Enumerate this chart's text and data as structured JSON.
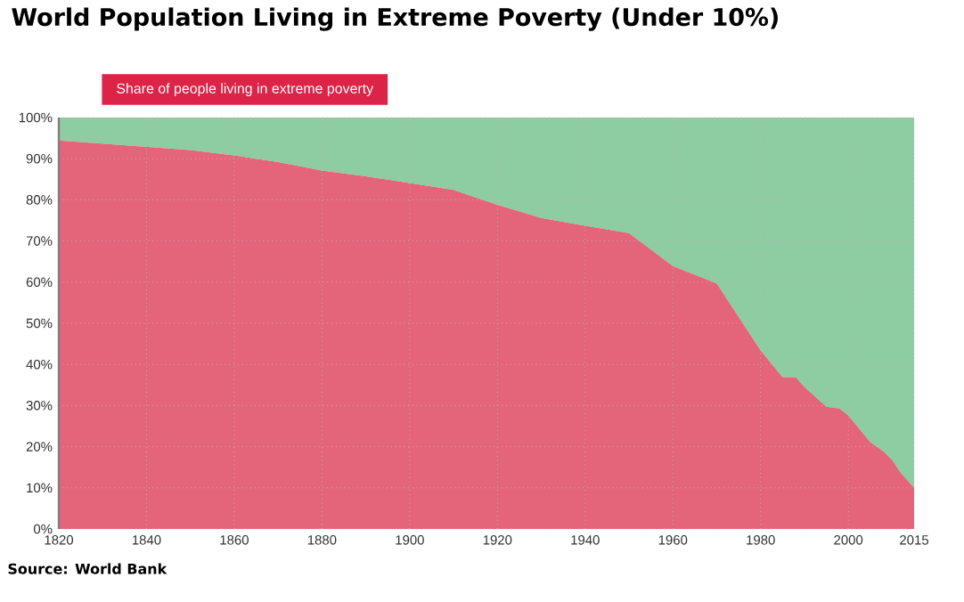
{
  "chart_data": {
    "type": "area",
    "title": "World Population Living in Extreme Poverty (Under 10%)",
    "annotations": [
      "Source: World Bank"
    ],
    "x": [
      1820,
      1850,
      1860,
      1870,
      1880,
      1890,
      1900,
      1910,
      1920,
      1930,
      1940,
      1950,
      1960,
      1970,
      1980,
      1985,
      1988,
      1990,
      1995,
      1998,
      2000,
      2005,
      2008,
      2010,
      2012,
      2015
    ],
    "stacked": true,
    "series": [
      {
        "name": "Share of people living in extreme poverty",
        "color": "#e4647a",
        "values": [
          94.4,
          92.1,
          90.8,
          89.2,
          87.1,
          85.7,
          84.1,
          82.4,
          78.8,
          75.6,
          73.7,
          71.9,
          63.9,
          59.7,
          43.4,
          36.9,
          36.9,
          34.5,
          29.7,
          29.3,
          27.6,
          21.1,
          18.9,
          16.8,
          13.6,
          10.0
        ]
      },
      {
        "color": "#8ecca2",
        "values": [
          5.6,
          7.9,
          9.2,
          10.8,
          12.9,
          14.3,
          15.9,
          17.6,
          21.2,
          24.4,
          26.3,
          28.1,
          36.1,
          40.3,
          56.6,
          63.1,
          63.1,
          65.5,
          70.3,
          70.7,
          72.4,
          78.9,
          81.1,
          83.2,
          86.4,
          90.0
        ]
      }
    ],
    "xlim": [
      1820,
      2015
    ],
    "xticks": [
      1820,
      1840,
      1860,
      1880,
      1900,
      1920,
      1940,
      1960,
      1980,
      2000,
      2015
    ],
    "ylim": [
      0,
      100
    ],
    "yticks": [
      {
        "value": 0,
        "label": "0%"
      },
      {
        "value": 10,
        "label": "10%"
      },
      {
        "value": 20,
        "label": "20%"
      },
      {
        "value": 30,
        "label": "30%"
      },
      {
        "value": 40,
        "label": "40%"
      },
      {
        "value": 50,
        "label": "50%"
      },
      {
        "value": 60,
        "label": "60%"
      },
      {
        "value": 70,
        "label": "70%"
      },
      {
        "value": 80,
        "label": "80%"
      },
      {
        "value": 90,
        "label": "90%"
      },
      {
        "value": 100,
        "label": "100%"
      }
    ],
    "grid": true,
    "legend": "top left"
  }
}
